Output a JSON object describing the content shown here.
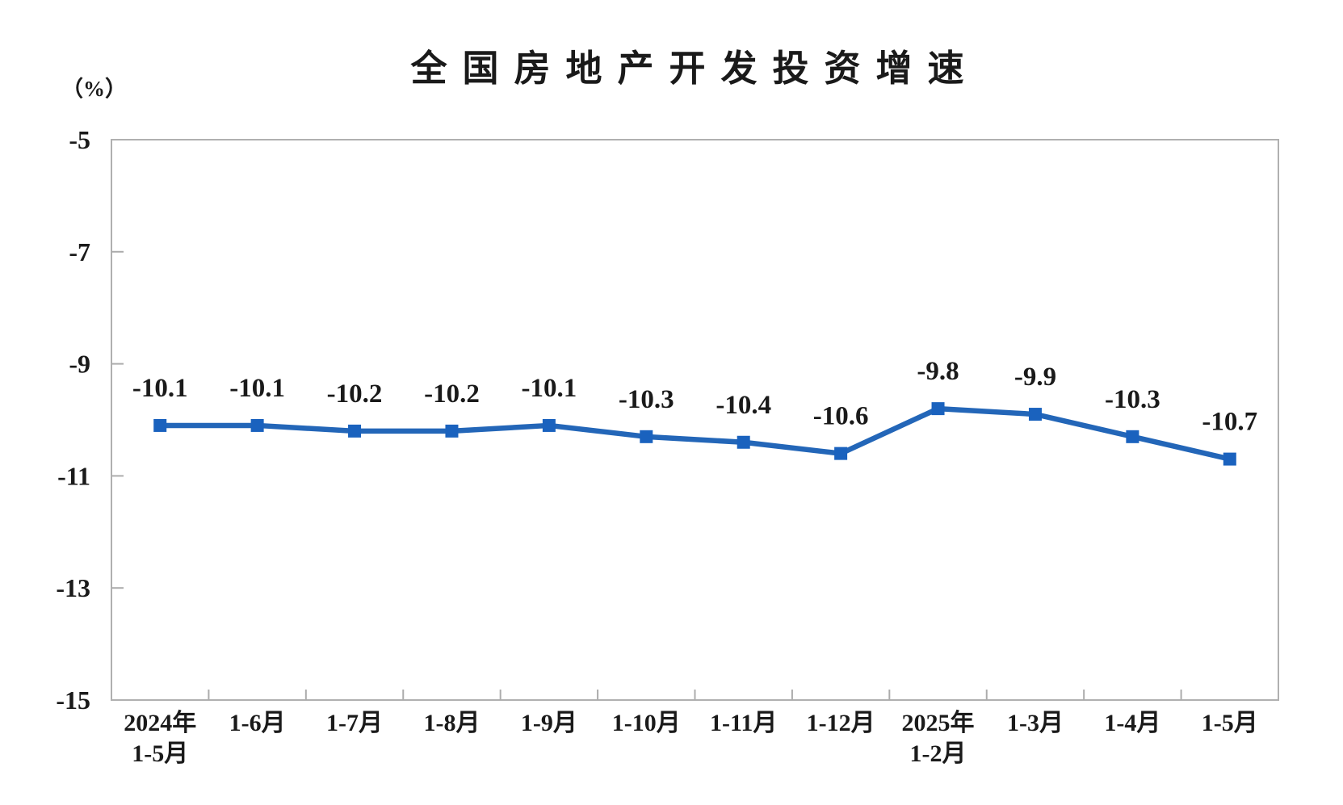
{
  "page": {
    "background_color": "#FFFFFF"
  },
  "chart_data": {
    "type": "line",
    "title": "全国房地产开发投资增速",
    "unit_label": "（%）",
    "categories": [
      [
        "2024年",
        "1-5月"
      ],
      [
        "1-6月"
      ],
      [
        "1-7月"
      ],
      [
        "1-8月"
      ],
      [
        "1-9月"
      ],
      [
        "1-10月"
      ],
      [
        "1-11月"
      ],
      [
        "1-12月"
      ],
      [
        "2025年",
        "1-2月"
      ],
      [
        "1-3月"
      ],
      [
        "1-4月"
      ],
      [
        "1-5月"
      ]
    ],
    "values": [
      -10.1,
      -10.1,
      -10.2,
      -10.2,
      -10.1,
      -10.3,
      -10.4,
      -10.6,
      -9.8,
      -9.9,
      -10.3,
      -10.7
    ],
    "data_labels": [
      "-10.1",
      "-10.1",
      "-10.2",
      "-10.2",
      "-10.1",
      "-10.3",
      "-10.4",
      "-10.6",
      "-9.8",
      "-9.9",
      "-10.3",
      "-10.7"
    ],
    "xlabel": "",
    "ylabel": "（%）",
    "ylim": [
      -15,
      -5
    ],
    "y_ticks": [
      -5,
      -7,
      -9,
      -11,
      -13,
      -15
    ],
    "y_tick_labels": [
      "-5",
      "-7",
      "-9",
      "-11",
      "-13",
      "-15"
    ],
    "grid": false,
    "legend_position": "none",
    "marker_shape": "square",
    "colors": {
      "line": "#2366B8",
      "marker": "#1A62BE",
      "axis_border": "#B0B0B0",
      "tick": "#ACACAC",
      "text": "#1A1A1A"
    }
  }
}
